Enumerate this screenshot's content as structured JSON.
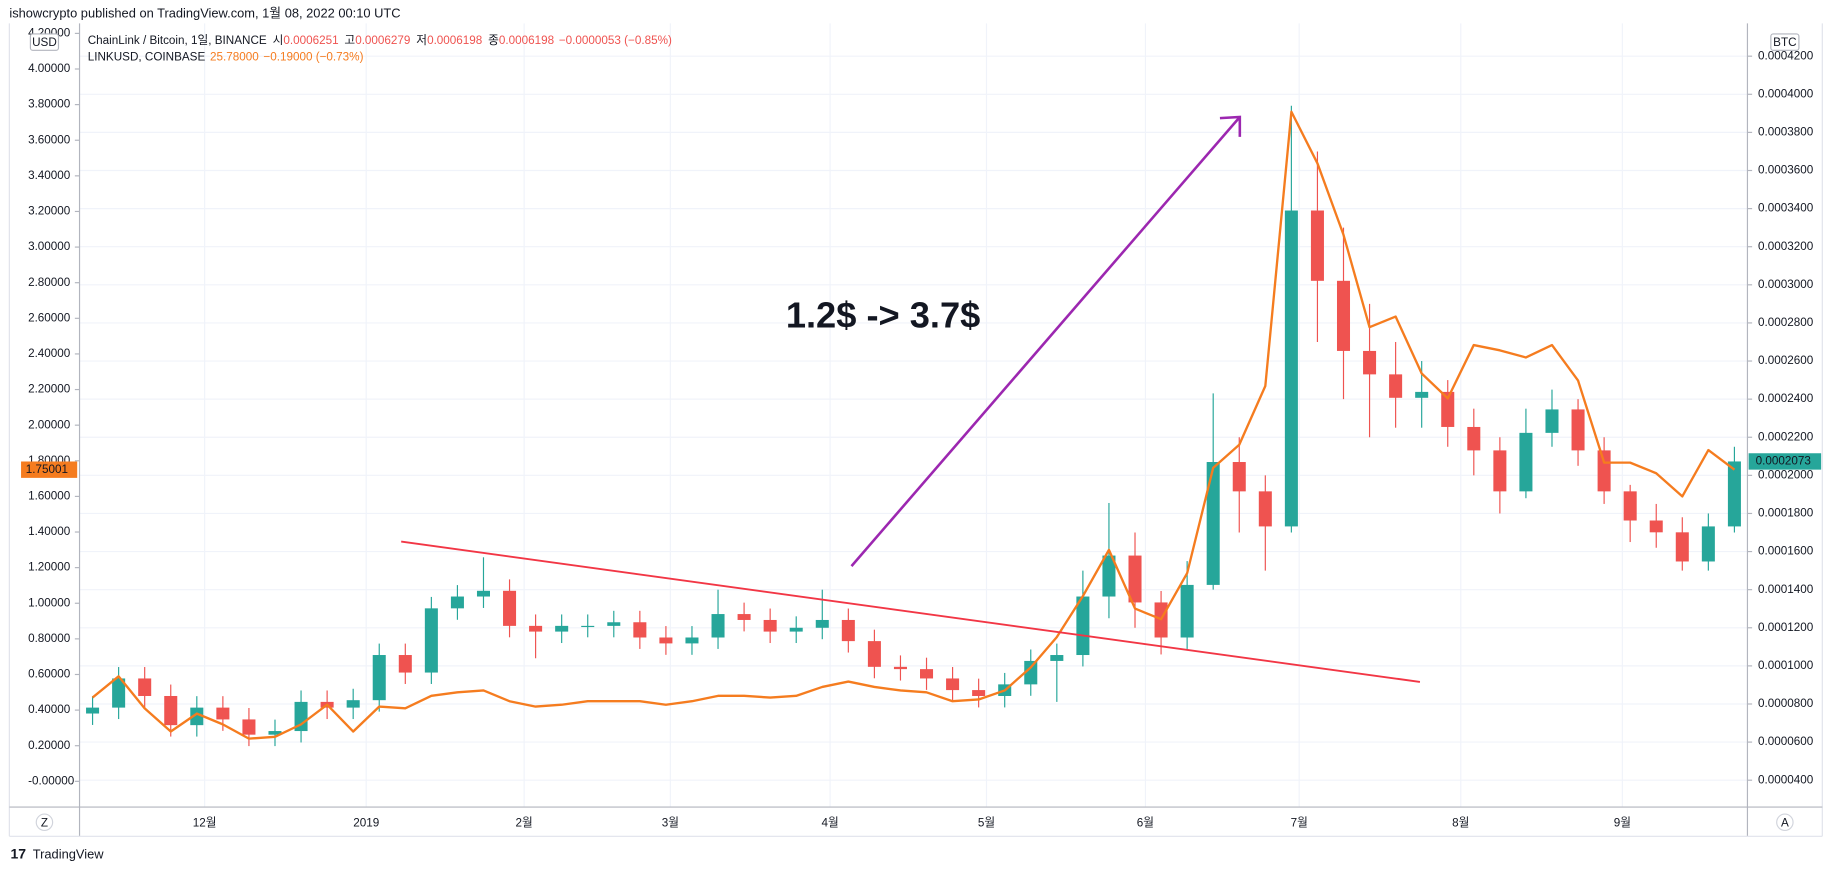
{
  "header": {
    "published": "ishowcrypto published on TradingView.com, 1월 08, 2022 00:10 UTC",
    "brand": "TradingView"
  },
  "controls": {
    "left": "Z",
    "right": "A"
  },
  "chart_data": {
    "type": "candlestick",
    "ylabel": "USD",
    "y2label": "BTC",
    "annotations": [
      {
        "text": "1.2$ -> 3.7$",
        "color": "#f23645"
      }
    ],
    "xlim": [
      0,
      64
    ],
    "xticks": [
      {
        "value": 4.8,
        "label": "12월"
      },
      {
        "value": 11.0,
        "label": "2019"
      },
      {
        "value": 17.06,
        "label": "2월"
      },
      {
        "value": 22.67,
        "label": "3월"
      },
      {
        "value": 28.8,
        "label": "4월"
      },
      {
        "value": 34.8,
        "label": "5월"
      },
      {
        "value": 40.9,
        "label": "6월"
      },
      {
        "value": 46.8,
        "label": "7월"
      },
      {
        "value": 53.0,
        "label": "8월"
      },
      {
        "value": 59.2,
        "label": "9월"
      }
    ],
    "ylim": [
      -0.1445,
      4.256
    ],
    "yticks": [
      {
        "value": 4.2,
        "label": "4.20000"
      },
      {
        "value": 4.0,
        "label": "4.00000"
      },
      {
        "value": 3.8,
        "label": "3.80000"
      },
      {
        "value": 3.6,
        "label": "3.60000"
      },
      {
        "value": 3.4,
        "label": "3.40000"
      },
      {
        "value": 3.2,
        "label": "3.20000"
      },
      {
        "value": 3.0,
        "label": "3.00000"
      },
      {
        "value": 2.8,
        "label": "2.80000"
      },
      {
        "value": 2.6,
        "label": "2.60000"
      },
      {
        "value": 2.4,
        "label": "2.40000"
      },
      {
        "value": 2.2,
        "label": "2.20000"
      },
      {
        "value": 2.0,
        "label": "2.00000"
      },
      {
        "value": 1.8,
        "label": "1.80000"
      },
      {
        "value": 1.6,
        "label": "1.60000"
      },
      {
        "value": 1.4,
        "label": "1.40000"
      },
      {
        "value": 1.2,
        "label": "1.20000"
      },
      {
        "value": 1.0,
        "label": "1.00000"
      },
      {
        "value": 0.8,
        "label": "0.80000"
      },
      {
        "value": 0.6,
        "label": "0.60000"
      },
      {
        "value": 0.4,
        "label": "0.40000"
      },
      {
        "value": 0.2,
        "label": "0.20000"
      },
      {
        "value": 0,
        "label": "-0.00000"
      }
    ],
    "y2lim": [
      2.59e-05,
      0.0004372
    ],
    "y2ticks": [
      {
        "value": 0.00042,
        "label": "0.0004200"
      },
      {
        "value": 0.0004,
        "label": "0.0004000"
      },
      {
        "value": 0.00038,
        "label": "0.0003800"
      },
      {
        "value": 0.00036,
        "label": "0.0003600"
      },
      {
        "value": 0.00034,
        "label": "0.0003400"
      },
      {
        "value": 0.00032,
        "label": "0.0003200"
      },
      {
        "value": 0.0003,
        "label": "0.0003000"
      },
      {
        "value": 0.00028,
        "label": "0.0002800"
      },
      {
        "value": 0.00026,
        "label": "0.0002600"
      },
      {
        "value": 0.00024,
        "label": "0.0002400"
      },
      {
        "value": 0.00022,
        "label": "0.0002200"
      },
      {
        "value": 0.0002,
        "label": "0.0002000"
      },
      {
        "value": 0.00018,
        "label": "0.0001800"
      },
      {
        "value": 0.00016,
        "label": "0.0001600"
      },
      {
        "value": 0.00014,
        "label": "0.0001400"
      },
      {
        "value": 0.00012,
        "label": "0.0001200"
      },
      {
        "value": 0.0001,
        "label": "0.0001000"
      },
      {
        "value": 8e-05,
        "label": "0.0000800"
      },
      {
        "value": 6e-05,
        "label": "0.0000600"
      },
      {
        "value": 4e-05,
        "label": "0.0000400"
      }
    ],
    "grid": true,
    "series": [
      {
        "name": "ChainLink / Bitcoin, 1일, BINANCE",
        "type": "candlestick",
        "axis": "y2",
        "up_color": "#26a69a",
        "down_color": "#ef5350",
        "legend_labels": [
          "시",
          "고",
          "저",
          "종"
        ],
        "legend_values": [
          "0.0006251",
          "0.0006279",
          "0.0006198",
          "0.0006198"
        ],
        "legend_change": "−0.0000053 (−0.85%)",
        "last_value": 0.0002073,
        "open": [
          7.5e-05,
          7.81e-05,
          9.34e-05,
          8.42e-05,
          6.89e-05,
          7.81e-05,
          7.19e-05,
          6.39e-05,
          6.58e-05,
          8.11e-05,
          7.81e-05,
          8.2e-05,
          0.0001057,
          9.65e-05,
          0.0001302,
          0.0001364,
          0.0001394,
          0.000121,
          0.000118,
          0.000121,
          0.000121,
          0.0001229,
          0.0001149,
          0.0001118,
          0.0001149,
          0.0001272,
          0.0001241,
          0.000118,
          0.00012,
          0.0001241,
          0.000113,
          9.95e-05,
          9.83e-05,
          9.34e-05,
          8.73e-05,
          8.42e-05,
          9.03e-05,
          0.0001026,
          0.0001057,
          0.0001364,
          0.0001579,
          0.0001333,
          0.0001149,
          0.0001425,
          0.000207,
          0.0001916,
          0.0001732,
          0.000339,
          0.0003021,
          0.0002653,
          0.000253,
          0.0002407,
          0.0002438,
          0.0002254,
          0.0002131,
          0.0001916,
          0.0002223,
          0.0002346,
          0.0002131,
          0.0001916,
          0.0001763,
          0.0001701,
          0.0001548,
          0.0001732
        ],
        "close": [
          7.81e-05,
          9.34e-05,
          8.42e-05,
          6.89e-05,
          7.81e-05,
          7.19e-05,
          6.39e-05,
          6.58e-05,
          8.11e-05,
          7.81e-05,
          8.2e-05,
          0.0001057,
          9.65e-05,
          0.0001302,
          0.0001364,
          0.0001394,
          0.000121,
          0.000118,
          0.000121,
          0.000121,
          0.0001229,
          0.0001149,
          0.0001118,
          0.0001149,
          0.0001272,
          0.0001241,
          0.000118,
          0.00012,
          0.0001241,
          0.000113,
          9.95e-05,
          9.83e-05,
          9.34e-05,
          8.73e-05,
          8.42e-05,
          9.03e-05,
          0.0001026,
          0.0001057,
          0.0001364,
          0.0001579,
          0.0001333,
          0.0001149,
          0.0001425,
          0.000207,
          0.0001916,
          0.0001732,
          0.000339,
          0.0003021,
          0.0002653,
          0.000253,
          0.0002407,
          0.0002438,
          0.0002254,
          0.0002131,
          0.0001916,
          0.0002223,
          0.0002346,
          0.0002131,
          0.0001916,
          0.0001763,
          0.0001701,
          0.0001548,
          0.0001732,
          0.0002073
        ],
        "high": [
          8.41e-05,
          9.94e-05,
          9.94e-05,
          9.02e-05,
          8.41e-05,
          8.41e-05,
          7.79e-05,
          7.18e-05,
          8.71e-05,
          8.71e-05,
          8.8e-05,
          0.0001117,
          0.0001117,
          0.0001362,
          0.0001424,
          0.000157,
          0.0001454,
          0.000127,
          0.000127,
          0.000127,
          0.0001289,
          0.0001289,
          0.0001209,
          0.0001209,
          0.00014,
          0.0001332,
          0.0001301,
          0.000126,
          0.00014,
          0.0001301,
          0.000119,
          0.0001055,
          0.0001043,
          9.94e-05,
          9.33e-05,
          9.63e-05,
          0.0001086,
          0.0001117,
          0.00015,
          0.0001855,
          0.00017,
          0.0001393,
          0.000155,
          0.000243,
          0.00022,
          0.0002,
          0.000394,
          0.00037,
          0.00033,
          0.00029,
          0.00027,
          0.00026,
          0.00025,
          0.000235,
          0.00022,
          0.000235,
          0.000245,
          0.00024,
          0.00022,
          0.000195,
          0.000185,
          0.000178,
          0.00018,
          0.000215
        ],
        "low": [
          6.9e-05,
          7.21e-05,
          7.82e-05,
          6.29e-05,
          6.29e-05,
          6.59e-05,
          5.79e-05,
          5.79e-05,
          5.98e-05,
          7.21e-05,
          7.21e-05,
          7.6e-05,
          9.05e-05,
          9.05e-05,
          0.0001242,
          0.0001304,
          0.000115,
          0.000104,
          0.000112,
          0.000115,
          0.000115,
          0.0001089,
          0.0001058,
          0.0001058,
          0.0001089,
          0.0001181,
          0.000112,
          0.000112,
          0.000114,
          0.000107,
          9.35e-05,
          9.23e-05,
          8.74e-05,
          8.13e-05,
          7.82e-05,
          7.82e-05,
          8.43e-05,
          8.11e-05,
          9.97e-05,
          0.000125,
          0.00012,
          0.000106,
          0.0001089,
          0.00014,
          0.00017,
          0.00015,
          0.00017,
          0.00027,
          0.00024,
          0.00022,
          0.000225,
          0.000225,
          0.000215,
          0.0002,
          0.00018,
          0.000188,
          0.000215,
          0.000205,
          0.000185,
          0.000165,
          0.000162,
          0.00015,
          0.00015,
          0.00017
        ]
      },
      {
        "name": "LINKUSD, COINBASE",
        "type": "line",
        "axis": "y",
        "color": "#f57c1f",
        "legend_values": [
          "25.78000"
        ],
        "legend_change": "−0.19000 (−0.73%)",
        "last_value": 1.75001,
        "values": [
          0.47,
          0.59,
          0.41,
          0.28,
          0.38,
          0.32,
          0.24,
          0.25,
          0.32,
          0.43,
          0.28,
          0.42,
          0.41,
          0.48,
          0.5,
          0.51,
          0.45,
          0.42,
          0.43,
          0.45,
          0.45,
          0.45,
          0.43,
          0.45,
          0.48,
          0.48,
          0.47,
          0.48,
          0.53,
          0.56,
          0.53,
          0.51,
          0.5,
          0.45,
          0.46,
          0.51,
          0.64,
          0.81,
          1.04,
          1.3,
          0.97,
          0.91,
          1.17,
          1.76,
          1.89,
          2.22,
          3.76,
          3.47,
          3.07,
          2.55,
          2.61,
          2.29,
          2.15,
          2.45,
          2.42,
          2.38,
          2.45,
          2.25,
          1.79,
          1.79,
          1.73,
          1.6,
          1.86,
          1.75
        ]
      }
    ]
  }
}
